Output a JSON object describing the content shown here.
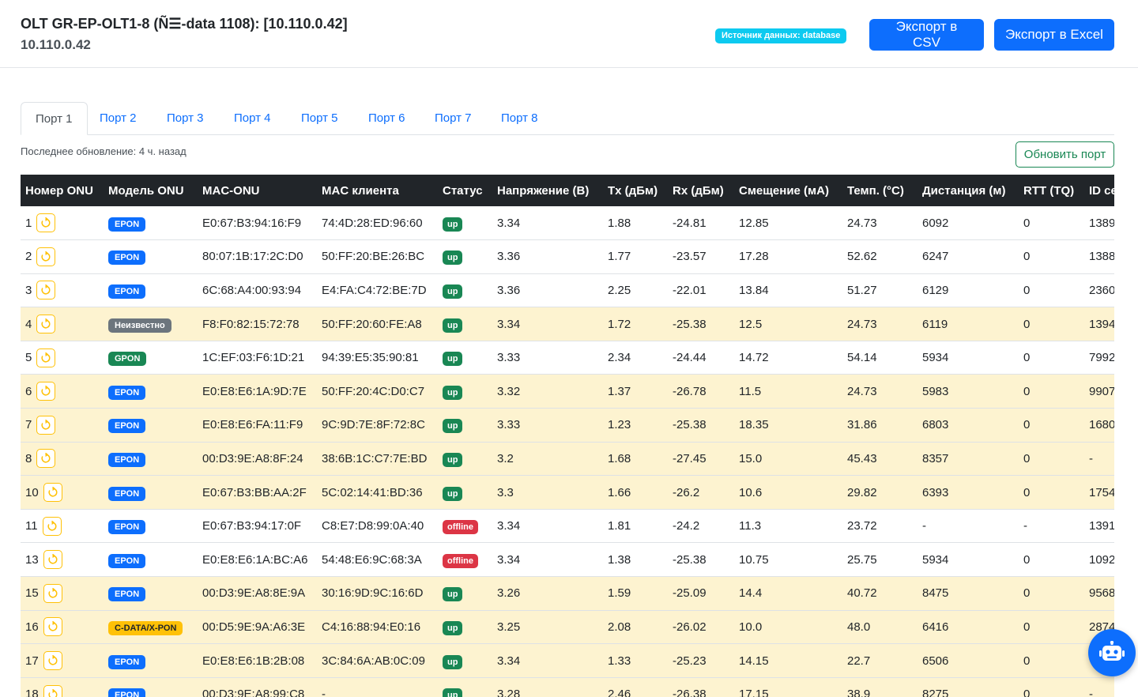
{
  "header": {
    "title": "OLT GR-EP-OLT1-8 (Ñ☰-data 1108): [10.110.0.42]",
    "subtitle": "10.110.0.42",
    "source_badge": "Источник данных: database",
    "export_csv": "Экспорт в CSV",
    "export_excel": "Экспорт в Excel"
  },
  "tabs": [
    "Порт 1",
    "Порт 2",
    "Порт 3",
    "Порт 4",
    "Порт 5",
    "Порт 6",
    "Порт 7",
    "Порт 8"
  ],
  "active_tab": "Порт 1",
  "last_update": "Последнее обновление: 4 ч. назад",
  "refresh_button": "Обновить порт",
  "table": {
    "columns": [
      "Номер ONU",
      "Модель ONU",
      "MAC-ONU",
      "MAC клиента",
      "Статус",
      "Напряжение (В)",
      "Tx (дБм)",
      "Rx (дБм)",
      "Смещение (мА)",
      "Темп. (°C)",
      "Дистанция (м)",
      "RTT (TQ)",
      "ID се"
    ],
    "rows": [
      {
        "num": "1",
        "model": "EPON",
        "model_color": "#0d6efd",
        "mac_onu": "E0:67:B3:94:16:F9",
        "mac_client": "74:4D:28:ED:96:60",
        "status": "up",
        "voltage": "3.34",
        "tx": "1.88",
        "rx": "-24.81",
        "bias": "12.85",
        "temp": "24.73",
        "distance": "6092",
        "rtt": "0",
        "id": "1389",
        "warn": false
      },
      {
        "num": "2",
        "model": "EPON",
        "model_color": "#0d6efd",
        "mac_onu": "80:07:1B:17:2C:D0",
        "mac_client": "50:FF:20:BE:26:BC",
        "status": "up",
        "voltage": "3.36",
        "tx": "1.77",
        "rx": "-23.57",
        "bias": "17.28",
        "temp": "52.62",
        "distance": "6247",
        "rtt": "0",
        "id": "1388",
        "warn": false
      },
      {
        "num": "3",
        "model": "EPON",
        "model_color": "#0d6efd",
        "mac_onu": "6C:68:A4:00:93:94",
        "mac_client": "E4:FA:C4:72:BE:7D",
        "status": "up",
        "voltage": "3.36",
        "tx": "2.25",
        "rx": "-22.01",
        "bias": "13.84",
        "temp": "51.27",
        "distance": "6129",
        "rtt": "0",
        "id": "2360",
        "warn": false
      },
      {
        "num": "4",
        "model": "Неизвестно",
        "model_color": "#6c757d",
        "mac_onu": "F8:F0:82:15:72:78",
        "mac_client": "50:FF:20:60:FE:A8",
        "status": "up",
        "voltage": "3.34",
        "tx": "1.72",
        "rx": "-25.38",
        "bias": "12.5",
        "temp": "24.73",
        "distance": "6119",
        "rtt": "0",
        "id": "1394",
        "warn": true
      },
      {
        "num": "5",
        "model": "GPON",
        "model_color": "#198754",
        "mac_onu": "1C:EF:03:F6:1D:21",
        "mac_client": "94:39:E5:35:90:81",
        "status": "up",
        "voltage": "3.33",
        "tx": "2.34",
        "rx": "-24.44",
        "bias": "14.72",
        "temp": "54.14",
        "distance": "5934",
        "rtt": "0",
        "id": "7992",
        "warn": false
      },
      {
        "num": "6",
        "model": "EPON",
        "model_color": "#0d6efd",
        "mac_onu": "E0:E8:E6:1A:9D:7E",
        "mac_client": "50:FF:20:4C:D0:C7",
        "status": "up",
        "voltage": "3.32",
        "tx": "1.37",
        "rx": "-26.78",
        "bias": "11.5",
        "temp": "24.73",
        "distance": "5983",
        "rtt": "0",
        "id": "9907",
        "warn": true
      },
      {
        "num": "7",
        "model": "EPON",
        "model_color": "#0d6efd",
        "mac_onu": "E0:E8:E6:FA:11:F9",
        "mac_client": "9C:9D:7E:8F:72:8C",
        "status": "up",
        "voltage": "3.33",
        "tx": "1.23",
        "rx": "-25.38",
        "bias": "18.35",
        "temp": "31.86",
        "distance": "6803",
        "rtt": "0",
        "id": "1680",
        "warn": true
      },
      {
        "num": "8",
        "model": "EPON",
        "model_color": "#0d6efd",
        "mac_onu": "00:D3:9E:A8:8F:24",
        "mac_client": "38:6B:1C:C7:7E:BD",
        "status": "up",
        "voltage": "3.2",
        "tx": "1.68",
        "rx": "-27.45",
        "bias": "15.0",
        "temp": "45.43",
        "distance": "8357",
        "rtt": "0",
        "id": "-",
        "warn": true
      },
      {
        "num": "10",
        "model": "EPON",
        "model_color": "#0d6efd",
        "mac_onu": "E0:67:B3:BB:AA:2F",
        "mac_client": "5C:02:14:41:BD:36",
        "status": "up",
        "voltage": "3.3",
        "tx": "1.66",
        "rx": "-26.2",
        "bias": "10.6",
        "temp": "29.82",
        "distance": "6393",
        "rtt": "0",
        "id": "1754",
        "warn": true
      },
      {
        "num": "11",
        "model": "EPON",
        "model_color": "#0d6efd",
        "mac_onu": "E0:67:B3:94:17:0F",
        "mac_client": "C8:E7:D8:99:0A:40",
        "status": "offline",
        "voltage": "3.34",
        "tx": "1.81",
        "rx": "-24.2",
        "bias": "11.3",
        "temp": "23.72",
        "distance": "-",
        "rtt": "-",
        "id": "1391",
        "warn": false
      },
      {
        "num": "13",
        "model": "EPON",
        "model_color": "#0d6efd",
        "mac_onu": "E0:E8:E6:1A:BC:A6",
        "mac_client": "54:48:E6:9C:68:3A",
        "status": "offline",
        "voltage": "3.34",
        "tx": "1.38",
        "rx": "-25.38",
        "bias": "10.75",
        "temp": "25.75",
        "distance": "5934",
        "rtt": "0",
        "id": "1092",
        "warn": false
      },
      {
        "num": "15",
        "model": "EPON",
        "model_color": "#0d6efd",
        "mac_onu": "00:D3:9E:A8:8E:9A",
        "mac_client": "30:16:9D:9C:16:6D",
        "status": "up",
        "voltage": "3.26",
        "tx": "1.59",
        "rx": "-25.09",
        "bias": "14.4",
        "temp": "40.72",
        "distance": "8475",
        "rtt": "0",
        "id": "9568",
        "warn": true
      },
      {
        "num": "16",
        "model": "C-DATA/X-PON",
        "model_color": "#ffc107",
        "mac_onu": "00:D5:9E:9A:A6:3E",
        "mac_client": "C4:16:88:94:E0:16",
        "status": "up",
        "voltage": "3.25",
        "tx": "2.08",
        "rx": "-26.02",
        "bias": "10.0",
        "temp": "48.0",
        "distance": "6416",
        "rtt": "0",
        "id": "2874",
        "warn": true
      },
      {
        "num": "17",
        "model": "EPON",
        "model_color": "#0d6efd",
        "mac_onu": "E0:E8:E6:1B:2B:08",
        "mac_client": "3C:84:6A:AB:0C:09",
        "status": "up",
        "voltage": "3.34",
        "tx": "1.33",
        "rx": "-25.23",
        "bias": "14.15",
        "temp": "22.7",
        "distance": "6506",
        "rtt": "0",
        "id": "",
        "warn": true
      },
      {
        "num": "18",
        "model": "EPON",
        "model_color": "#0d6efd",
        "mac_onu": "00:D3:9E:A8:99:C8",
        "mac_client": "-",
        "status": "up",
        "voltage": "3.28",
        "tx": "2.46",
        "rx": "-26.38",
        "bias": "17.15",
        "temp": "38.9",
        "distance": "8275",
        "rtt": "0",
        "id": "-",
        "warn": true
      }
    ]
  },
  "colors": {
    "primary": "#0d6efd",
    "success": "#198754",
    "danger": "#dc3545",
    "warning": "#ffc107",
    "info": "#0dcaf0",
    "warn_row": "#fdf3d0",
    "header_dark": "#212529"
  },
  "icons": {
    "reboot": "reboot-icon",
    "assistant": "robot-icon"
  }
}
